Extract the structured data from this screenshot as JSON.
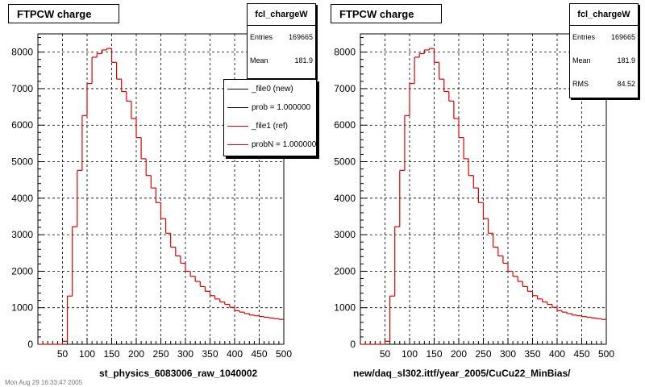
{
  "panels": [
    {
      "title": "FTPCW charge",
      "stats": {
        "name": "fcl_chargeW",
        "rows": [
          {
            "label": "Entries",
            "value": "169665"
          },
          {
            "label": "Mean",
            "value": "181.9"
          }
        ]
      },
      "legend": [
        {
          "text": "_file0 (new)",
          "color": "#000000"
        },
        {
          "text": "prob = 1.000000",
          "color": "#000000"
        },
        {
          "text": "_file1 (ref)",
          "color": "#e00000"
        },
        {
          "text": "probN = 1.000000",
          "color": "#e00000"
        }
      ],
      "xtitle": "st_physics_6083006_raw_1040002"
    },
    {
      "title": "FTPCW charge",
      "stats": {
        "name": "fcl_chargeW",
        "rows": [
          {
            "label": "Entries",
            "value": "169665"
          },
          {
            "label": "Mean",
            "value": "181.9"
          },
          {
            "label": "RMS",
            "value": "84.52"
          }
        ]
      },
      "legend": [],
      "xtitle": "new/daq_sl302.ittf/year_2005/CuCu22_MinBias/"
    }
  ],
  "footer": "Mon Aug 29 16:33:47 2005",
  "chart_data": [
    {
      "type": "bar",
      "title": "FTPCW charge",
      "xlabel": "st_physics_6083006_raw_1040002",
      "ylabel": "",
      "xlim": [
        0,
        500
      ],
      "ylim": [
        0,
        8500
      ],
      "xticks": [
        "50",
        "100",
        "150",
        "200",
        "250",
        "300",
        "350",
        "400",
        "450",
        "500"
      ],
      "yticks": [
        "0",
        "1000",
        "2000",
        "3000",
        "4000",
        "5000",
        "6000",
        "7000",
        "8000"
      ],
      "grid": true,
      "bin_width": 10,
      "series": [
        {
          "name": "_file1 (ref)",
          "color": "#e00000",
          "values": [
            0,
            0,
            0,
            0,
            0,
            80,
            1320,
            3220,
            4760,
            6260,
            7140,
            7860,
            7960,
            8060,
            8100,
            7720,
            7260,
            6920,
            6660,
            6180,
            5660,
            5080,
            4620,
            4280,
            3880,
            3440,
            3040,
            2660,
            2420,
            2220,
            2000,
            1860,
            1720,
            1580,
            1450,
            1330,
            1240,
            1160,
            1090,
            1010,
            920,
            880,
            840,
            800,
            780,
            760,
            740,
            720,
            700,
            680
          ]
        }
      ]
    },
    {
      "type": "bar",
      "title": "FTPCW charge",
      "xlabel": "new/daq_sl302.ittf/year_2005/CuCu22_MinBias/",
      "ylabel": "",
      "xlim": [
        0,
        500
      ],
      "ylim": [
        0,
        8500
      ],
      "xticks": [
        "50",
        "100",
        "150",
        "200",
        "250",
        "300",
        "350",
        "400",
        "450",
        "500"
      ],
      "yticks": [
        "0",
        "1000",
        "2000",
        "3000",
        "4000",
        "5000",
        "6000",
        "7000",
        "8000"
      ],
      "grid": true,
      "bin_width": 10,
      "series": [
        {
          "name": "",
          "color": "#e00000",
          "values": [
            0,
            0,
            0,
            0,
            0,
            80,
            1320,
            3220,
            4760,
            6260,
            7140,
            7860,
            7960,
            8060,
            8100,
            7720,
            7260,
            6920,
            6660,
            6180,
            5660,
            5080,
            4620,
            4280,
            3880,
            3440,
            3040,
            2660,
            2420,
            2220,
            2000,
            1860,
            1720,
            1580,
            1450,
            1330,
            1240,
            1160,
            1090,
            1010,
            920,
            880,
            840,
            800,
            780,
            760,
            740,
            720,
            700,
            680
          ]
        }
      ]
    }
  ]
}
